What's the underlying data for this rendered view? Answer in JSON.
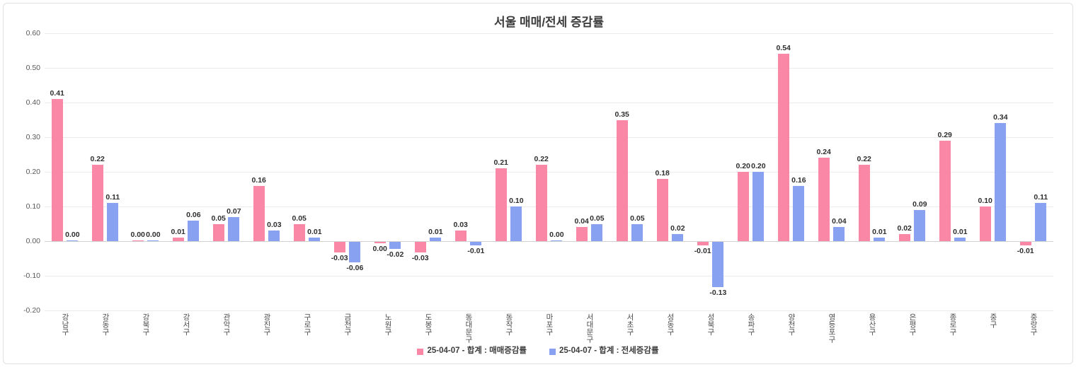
{
  "chart_data": {
    "type": "bar",
    "title": "서울 매매/전세 증감률",
    "categories": [
      "강남구",
      "강동구",
      "강북구",
      "강서구",
      "관악구",
      "광진구",
      "구로구",
      "금천구",
      "노원구",
      "도봉구",
      "동대문구",
      "동작구",
      "마포구",
      "서대문구",
      "서초구",
      "성동구",
      "성북구",
      "송파구",
      "양천구",
      "영등포구",
      "용산구",
      "은평구",
      "종로구",
      "중구",
      "중랑구"
    ],
    "series": [
      {
        "key": "sale",
        "name": "25-04-07 - 합계 : 매매증감률",
        "color": "#fa87a5",
        "values": [
          0.41,
          0.22,
          0.002,
          0.01,
          0.05,
          0.16,
          0.05,
          -0.03,
          -0.004,
          -0.03,
          0.03,
          0.21,
          0.22,
          0.04,
          0.35,
          0.18,
          -0.01,
          0.2,
          0.54,
          0.24,
          0.22,
          0.02,
          0.29,
          0.1,
          -0.01
        ],
        "labels": [
          "0.41",
          "0.22",
          "0.00",
          "0.01",
          "0.05",
          "0.16",
          "0.05",
          "-0.03",
          "0.00",
          "-0.03",
          "0.03",
          "0.21",
          "0.22",
          "0.04",
          "0.35",
          "0.18",
          "-0.01",
          "0.20",
          "0.54",
          "0.24",
          "0.22",
          "0.02",
          "0.29",
          "0.10",
          "-0.01"
        ]
      },
      {
        "key": "jeonse",
        "name": "25-04-07 - 합계 : 전세증감률",
        "color": "#88a2f1",
        "values": [
          0.002,
          0.11,
          0.002,
          0.06,
          0.07,
          0.03,
          0.01,
          -0.06,
          -0.02,
          0.01,
          -0.01,
          0.1,
          0.003,
          0.05,
          0.05,
          0.02,
          -0.13,
          0.2,
          0.16,
          0.04,
          0.01,
          0.09,
          0.01,
          0.34,
          0.11
        ],
        "labels": [
          "0.00",
          "0.11",
          "0.00",
          "0.06",
          "0.07",
          "0.03",
          "0.01",
          "-0.06",
          "-0.02",
          "0.01",
          "-0.01",
          "0.10",
          "0.00",
          "0.05",
          "0.05",
          "0.02",
          "-0.13",
          "0.20",
          "0.16",
          "0.04",
          "0.01",
          "0.09",
          "0.01",
          "0.34",
          "0.11"
        ]
      }
    ],
    "ylim": [
      -0.2,
      0.6
    ],
    "ytick_interval": 0.1,
    "ytick_labels": [
      "0.60",
      "0.50",
      "0.40",
      "0.30",
      "0.20",
      "0.10",
      "0.00",
      "-0.10",
      "-0.20"
    ],
    "grid": "horizontal",
    "legend_position": "bottom"
  }
}
